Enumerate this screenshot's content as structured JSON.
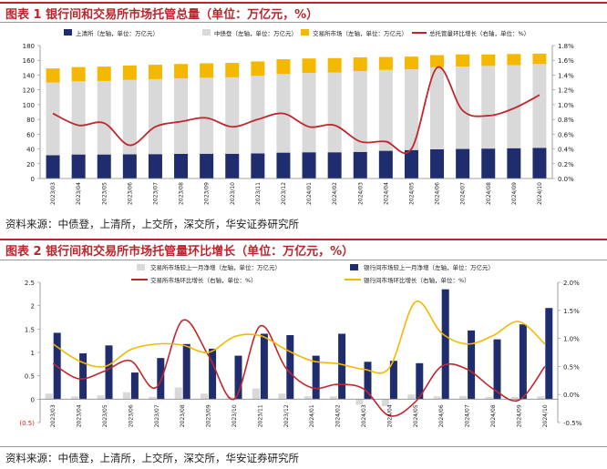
{
  "figures": [
    {
      "label": "图表 1",
      "title": "银行间和交易所市场托管总量（单位：万亿元，%）"
    },
    {
      "label": "图表 2",
      "title": "银行间和交易所市场托管量环比增长（单位：万亿元，%）"
    }
  ],
  "source_text": "资料来源：中债登，上清所，上交所，深交所，华安证券研究所",
  "colors": {
    "navy": "#1f2d6e",
    "gray": "#d9d9d9",
    "gold": "#f5b800",
    "red": "#c0272d",
    "title_red": "#b8272d"
  },
  "chart_data": [
    {
      "type": "bar",
      "stacked": true,
      "categories": [
        "2023/03",
        "2023/04",
        "2023/05",
        "2023/06",
        "2023/07",
        "2023/08",
        "2023/09",
        "2023/10",
        "2023/11",
        "2023/12",
        "2024/01",
        "2024/02",
        "2024/03",
        "2024/04",
        "2024/05",
        "2024/06",
        "2024/07",
        "2024/08",
        "2024/09",
        "2024/10"
      ],
      "series": [
        {
          "name": "上清所（左轴，单位：万亿元）",
          "color": "#1f2d6e",
          "axis": "left",
          "type": "bar",
          "values": [
            31.5,
            32.5,
            32.5,
            32.8,
            33,
            33.3,
            33.5,
            33.5,
            34,
            35,
            35.5,
            35.5,
            36,
            37.5,
            38.5,
            39.5,
            40,
            40.5,
            41,
            41.5
          ]
        },
        {
          "name": "中债登（左轴，单位：万亿元）",
          "color": "#d9d9d9",
          "axis": "left",
          "type": "bar",
          "values": [
            98.5,
            99,
            99.5,
            100.7,
            101.5,
            102.2,
            103,
            103.5,
            105,
            106.5,
            107.5,
            108,
            109.5,
            109.5,
            109.5,
            111,
            111.5,
            112,
            112.5,
            113.5
          ]
        },
        {
          "name": "交易所市场（左轴，单位：万亿元）",
          "color": "#f5b800",
          "axis": "left",
          "type": "bar",
          "values": [
            19,
            19.3,
            19.5,
            19.5,
            19.5,
            19.5,
            19.5,
            19.5,
            19.5,
            20,
            19.5,
            19.5,
            18.5,
            17.5,
            17,
            16.5,
            16.5,
            15.5,
            15,
            14
          ]
        },
        {
          "name": "总托管量环比增长（右轴，单位：%）",
          "color": "#c0272d",
          "axis": "right",
          "type": "line",
          "values": [
            0.88,
            0.72,
            0.75,
            0.45,
            0.7,
            0.77,
            0.82,
            0.7,
            0.8,
            0.88,
            0.7,
            0.72,
            0.5,
            0.5,
            0.4,
            1.5,
            0.92,
            0.85,
            0.95,
            1.13
          ]
        }
      ],
      "ylim_left": [
        0,
        180
      ],
      "yticks_left": [
        0,
        20,
        40,
        60,
        80,
        100,
        120,
        140,
        160,
        180
      ],
      "ylim_right": [
        0,
        1.8
      ],
      "yticks_right": [
        "0.0%",
        "0.2%",
        "0.4%",
        "0.6%",
        "0.8%",
        "1.0%",
        "1.2%",
        "1.4%",
        "1.6%",
        "1.8%"
      ],
      "legend_position": "top",
      "grid": false
    },
    {
      "type": "bar",
      "categories": [
        "2023/03",
        "2023/04",
        "2023/05",
        "2023/06",
        "2023/07",
        "2023/08",
        "2023/09",
        "2023/10",
        "2023/11",
        "2023/12",
        "2024/01",
        "2024/02",
        "2024/03",
        "2024/04",
        "2024/05",
        "2024/06",
        "2024/07",
        "2024/08",
        "2024/09",
        "2024/10"
      ],
      "series": [
        {
          "name": "交易所市场较上一月净增（左轴，单位：万亿元）",
          "color": "#d9d9d9",
          "axis": "left",
          "type": "bar",
          "values": [
            0.12,
            0.06,
            0.08,
            0.15,
            0.05,
            0.25,
            0.12,
            0.05,
            0.23,
            0.12,
            0.06,
            0.06,
            -0.12,
            -0.15,
            0.1,
            0.06,
            0.07,
            0.05,
            0.05,
            0.06
          ]
        },
        {
          "name": "银行间市场较上一月净增（左轴，单位：万亿元）",
          "color": "#1f2d6e",
          "axis": "left",
          "type": "bar",
          "values": [
            1.42,
            0.98,
            1.15,
            0.57,
            0.88,
            1.18,
            1.08,
            0.93,
            1.4,
            1.37,
            0.93,
            1.4,
            0.8,
            0.82,
            0.77,
            2.35,
            1.47,
            1.28,
            1.6,
            1.95
          ]
        },
        {
          "name": "交易所市场环比增长（右轴，单位：%）",
          "color": "#c0272d",
          "axis": "right",
          "type": "line",
          "values": [
            0.55,
            0.28,
            0.42,
            0.6,
            0.13,
            1.32,
            0.7,
            -0.08,
            1.22,
            0.47,
            0.12,
            0.18,
            0.1,
            -0.38,
            -0.13,
            0.5,
            0.45,
            0.1,
            -0.1,
            0.5
          ]
        },
        {
          "name": "银行间市场环比增长（右轴，单位：%）",
          "color": "#f5b800",
          "axis": "right",
          "type": "line",
          "values": [
            0.9,
            0.6,
            0.5,
            0.8,
            0.9,
            0.88,
            0.75,
            1.03,
            1.05,
            0.8,
            0.6,
            0.55,
            0.45,
            0.48,
            1.65,
            1.1,
            0.9,
            1.05,
            1.3,
            0.9
          ]
        }
      ],
      "ylim_left": [
        -0.5,
        2.5
      ],
      "yticks_left": [
        "(0.5)",
        "0",
        "0.5",
        "1",
        "1.5",
        "2",
        "2.5"
      ],
      "ylim_right": [
        -0.5,
        2.0
      ],
      "yticks_right": [
        "-0.5%",
        "0.0%",
        "0.5%",
        "1.0%",
        "1.5%",
        "2.0%"
      ],
      "legend_position": "top",
      "grid": false
    }
  ]
}
